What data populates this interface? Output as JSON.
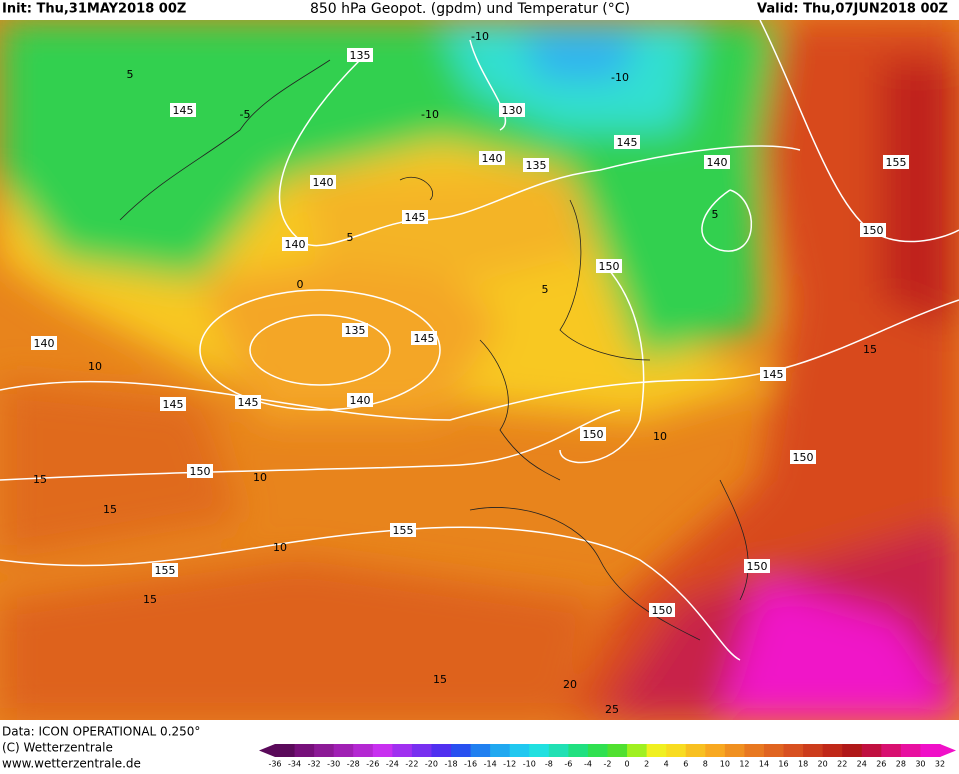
{
  "header": {
    "init": "Init: Thu,31MAY2018 00Z",
    "title": "850 hPa Geopot. (gpdm) und Temperatur (°C)",
    "valid": "Valid: Thu,07JUN2018 00Z"
  },
  "map": {
    "geopotential_labels": [
      135,
      145,
      130,
      140,
      135,
      145,
      140,
      155,
      140,
      145,
      140,
      150,
      150,
      135,
      145,
      140,
      145,
      145,
      145,
      140,
      150,
      150,
      150,
      155,
      155,
      150,
      150
    ],
    "temperature_labels": [
      -10,
      -10,
      -10,
      -5,
      0,
      5,
      5,
      10,
      5,
      10,
      15,
      15,
      15,
      20,
      25,
      10,
      15,
      15,
      10,
      5
    ]
  },
  "footer": {
    "data": "Data: ICON OPERATIONAL 0.250°",
    "copyright": "(C) Wetterzentrale",
    "url": "www.wetterzentrale.de"
  },
  "colorbar": {
    "labels": [
      -36,
      -34,
      -32,
      -30,
      -28,
      -26,
      -24,
      -22,
      -20,
      -18,
      -16,
      -14,
      -12,
      -10,
      -8,
      -6,
      -4,
      -2,
      0,
      2,
      4,
      6,
      8,
      10,
      12,
      14,
      16,
      18,
      20,
      22,
      24,
      26,
      28,
      30,
      32
    ],
    "colors": [
      "#5a0a5a",
      "#76107a",
      "#8c1a96",
      "#a020b4",
      "#b428d2",
      "#c830f0",
      "#a030f0",
      "#7830f0",
      "#5030f0",
      "#2850f0",
      "#2080f0",
      "#20a8f0",
      "#20c8f0",
      "#20e0e0",
      "#20e0b4",
      "#20e080",
      "#30e050",
      "#50e030",
      "#a0f020",
      "#f0f020",
      "#f8dc20",
      "#f8c020",
      "#f8a820",
      "#f09020",
      "#e87820",
      "#e06420",
      "#d85020",
      "#cc3c1c",
      "#c02818",
      "#b01818",
      "#c01040",
      "#d81070",
      "#e810a0",
      "#f010c8"
    ]
  }
}
